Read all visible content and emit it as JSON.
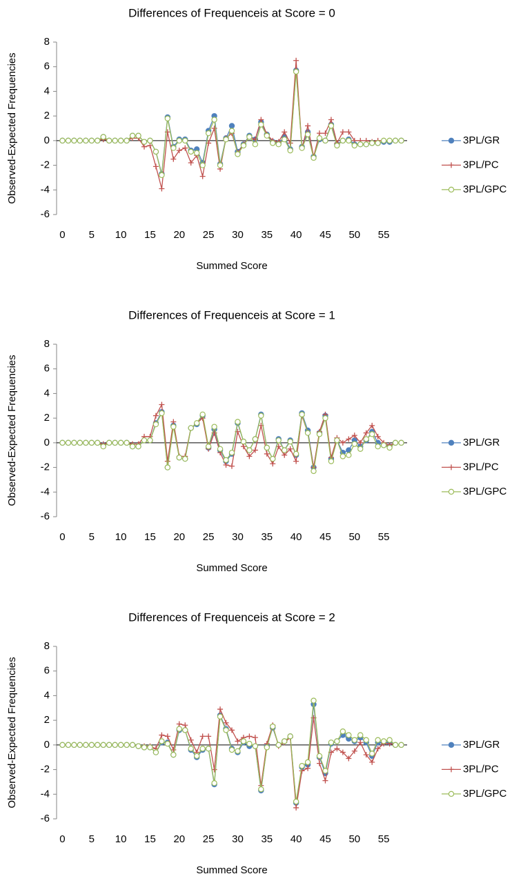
{
  "chart_data": [
    {
      "type": "line",
      "title": "Differences of Frequenceis at Score = 0",
      "x_label": "Summed Score",
      "y_label": "Observed-Expected Frequencies",
      "x": [
        0,
        1,
        2,
        3,
        4,
        5,
        6,
        7,
        8,
        9,
        10,
        11,
        12,
        13,
        14,
        15,
        16,
        17,
        18,
        19,
        20,
        21,
        22,
        23,
        24,
        25,
        26,
        27,
        28,
        29,
        30,
        31,
        32,
        33,
        34,
        35,
        36,
        37,
        38,
        39,
        40,
        41,
        42,
        43,
        44,
        45,
        46,
        47,
        48,
        49,
        50,
        51,
        52,
        53,
        54,
        55,
        56,
        57,
        58
      ],
      "series": [
        {
          "name": "3PL/GR",
          "color": "#4f81bd",
          "marker": "circle",
          "values": [
            0,
            0,
            0,
            0,
            0,
            0,
            0,
            0.3,
            0,
            0,
            0,
            0,
            0.4,
            0.4,
            -0.1,
            0,
            -0.9,
            -2.7,
            1.9,
            -0.5,
            0.1,
            0.1,
            -0.8,
            -0.7,
            -1.8,
            0.8,
            2,
            -1.9,
            0.2,
            1.2,
            -0.9,
            -0.3,
            0.4,
            0.1,
            1.5,
            0.5,
            -0.1,
            -0.2,
            0.3,
            -0.7,
            5.7,
            -0.5,
            0.7,
            -1.3,
            0.1,
            0,
            1.3,
            -0.3,
            0,
            0.1,
            -0.3,
            -0.3,
            -0.3,
            -0.2,
            -0.2,
            -0.1,
            -0.1,
            0,
            0
          ]
        },
        {
          "name": "3PL/PC",
          "color": "#c0504d",
          "marker": "plus",
          "values": [
            0,
            0,
            0,
            0,
            0,
            0,
            0,
            0.1,
            0,
            0,
            0,
            0,
            0.2,
            0.2,
            -0.5,
            -0.4,
            -2.1,
            -3.9,
            0.7,
            -1.5,
            -0.8,
            -0.6,
            -1.8,
            -1.2,
            -2.9,
            -0.2,
            1,
            -2.3,
            0.2,
            0.6,
            -1,
            -0.3,
            0.3,
            0.1,
            1.7,
            0.5,
            0,
            -0.1,
            0.7,
            -0.2,
            6.5,
            -0.6,
            1.2,
            -1.3,
            0.6,
            0.6,
            1.7,
            -0.2,
            0.7,
            0.7,
            0,
            0,
            0,
            -0.1,
            0,
            0,
            0,
            0,
            0
          ]
        },
        {
          "name": "3PL/GPC",
          "color": "#9bbb59",
          "marker": "open-circle",
          "values": [
            0,
            0,
            0,
            0,
            0,
            0,
            0,
            0.3,
            0,
            0,
            0,
            0,
            0.4,
            0.4,
            -0.1,
            0,
            -0.9,
            -2.8,
            1.8,
            -0.6,
            0,
            0,
            -0.9,
            -1,
            -2,
            0.6,
            1.7,
            -2,
            0.1,
            0.8,
            -1.1,
            -0.4,
            0.3,
            -0.3,
            1.3,
            0.4,
            -0.2,
            -0.3,
            0.1,
            -0.8,
            5.6,
            -0.6,
            0.5,
            -1.4,
            0.2,
            0,
            1.2,
            -0.4,
            0,
            0,
            -0.4,
            -0.3,
            -0.3,
            -0.2,
            -0.2,
            0,
            0,
            0,
            0
          ]
        }
      ],
      "xlim": [
        -1,
        59
      ],
      "ylim": [
        -6,
        8
      ],
      "xticks": [
        0,
        5,
        10,
        15,
        20,
        25,
        30,
        35,
        40,
        45,
        50,
        55
      ],
      "yticks": [
        -6,
        -4,
        -2,
        0,
        2,
        4,
        6,
        8
      ],
      "legend": "right"
    },
    {
      "type": "line",
      "title": "Differences of Frequenceis at Score = 1",
      "x_label": "Summed Score",
      "y_label": "Observed-Expected Frequencies",
      "x": [
        0,
        1,
        2,
        3,
        4,
        5,
        6,
        7,
        8,
        9,
        10,
        11,
        12,
        13,
        14,
        15,
        16,
        17,
        18,
        19,
        20,
        21,
        22,
        23,
        24,
        25,
        26,
        27,
        28,
        29,
        30,
        31,
        32,
        33,
        34,
        35,
        36,
        37,
        38,
        39,
        40,
        41,
        42,
        43,
        44,
        45,
        46,
        47,
        48,
        49,
        50,
        51,
        52,
        53,
        54,
        55,
        56,
        57,
        58
      ],
      "series": [
        {
          "name": "3PL/GR",
          "color": "#4f81bd",
          "marker": "circle",
          "values": [
            0,
            0,
            0,
            0,
            0,
            0,
            0,
            -0.2,
            0,
            0,
            0,
            0,
            -0.3,
            -0.3,
            0.2,
            0.2,
            1.6,
            2.5,
            -2,
            1.4,
            -1.2,
            -1.3,
            1.2,
            1.5,
            2.2,
            -0.4,
            1.1,
            -0.6,
            -1.5,
            -0.9,
            1.6,
            0.1,
            -0.6,
            0.3,
            2.3,
            -0.4,
            -1.3,
            0.3,
            -0.6,
            0.2,
            -1,
            2.4,
            1,
            -2,
            0.8,
            2.2,
            -1.3,
            0.2,
            -0.8,
            -0.6,
            0.2,
            -0.3,
            0.2,
            0.9,
            0,
            -0.2,
            -0.3,
            0,
            0
          ]
        },
        {
          "name": "3PL/PC",
          "color": "#c0504d",
          "marker": "plus",
          "values": [
            0,
            0,
            0,
            0,
            0,
            0,
            0,
            -0.1,
            0,
            0,
            0,
            0,
            -0.1,
            -0.1,
            0.5,
            0.5,
            2.2,
            3.1,
            -1.5,
            1.7,
            -1.1,
            -1.1,
            1.2,
            1.6,
            2,
            -0.5,
            0.8,
            -0.8,
            -1.8,
            -1.9,
            0.9,
            -0.3,
            -1.1,
            -0.6,
            1.4,
            -0.9,
            -1.7,
            -0.3,
            -1,
            -0.5,
            -1.5,
            2.2,
            0.8,
            -2,
            0.9,
            2.3,
            -1.2,
            0.4,
            0,
            0.3,
            0.6,
            0,
            0.8,
            1.4,
            0.5,
            0,
            -0.2,
            0,
            0
          ]
        },
        {
          "name": "3PL/GPC",
          "color": "#9bbb59",
          "marker": "open-circle",
          "values": [
            0,
            0,
            0,
            0,
            0,
            0,
            0,
            -0.3,
            0,
            0,
            0,
            0,
            -0.3,
            -0.3,
            0.2,
            0.2,
            1.5,
            2.4,
            -2,
            1.3,
            -1.2,
            -1.3,
            1.2,
            1.6,
            2.3,
            -0.3,
            1.3,
            -0.5,
            -1.4,
            -0.8,
            1.7,
            0.1,
            -0.6,
            0.3,
            2.2,
            -0.4,
            -1.3,
            0.2,
            -0.6,
            0.1,
            -0.9,
            2.3,
            0.8,
            -2.3,
            0.7,
            2,
            -1.5,
            0.2,
            -1.1,
            -1,
            -0.1,
            -0.5,
            0.3,
            0.7,
            -0.3,
            -0.2,
            -0.4,
            0,
            0
          ]
        }
      ],
      "xlim": [
        -1,
        59
      ],
      "ylim": [
        -6,
        8
      ],
      "xticks": [
        0,
        5,
        10,
        15,
        20,
        25,
        30,
        35,
        40,
        45,
        50,
        55
      ],
      "yticks": [
        -6,
        -4,
        -2,
        0,
        2,
        4,
        6,
        8
      ],
      "legend": "right"
    },
    {
      "type": "line",
      "title": "Differences of Frequenceis at Score = 2",
      "x_label": "Summed Score",
      "y_label": "Observed-Expected Frequencies",
      "x": [
        0,
        1,
        2,
        3,
        4,
        5,
        6,
        7,
        8,
        9,
        10,
        11,
        12,
        13,
        14,
        15,
        16,
        17,
        18,
        19,
        20,
        21,
        22,
        23,
        24,
        25,
        26,
        27,
        28,
        29,
        30,
        31,
        32,
        33,
        34,
        35,
        36,
        37,
        38,
        39,
        40,
        41,
        42,
        43,
        44,
        45,
        46,
        47,
        48,
        49,
        50,
        51,
        52,
        53,
        54,
        55,
        56,
        57,
        58
      ],
      "series": [
        {
          "name": "3PL/GR",
          "color": "#4f81bd",
          "marker": "circle",
          "values": [
            0,
            0,
            0,
            0,
            0,
            0,
            0,
            0,
            0,
            0,
            0,
            0,
            0,
            -0.1,
            -0.2,
            -0.2,
            -0.6,
            0.2,
            0.2,
            -0.8,
            1.2,
            1.2,
            -0.4,
            -1,
            -0.4,
            -0.3,
            -3.2,
            2.4,
            1.3,
            -0.3,
            -0.6,
            0.2,
            -0.1,
            -0.1,
            -3.7,
            -0.1,
            1.4,
            0,
            0.3,
            0.7,
            -4.7,
            -1.8,
            -1.6,
            3.3,
            -1,
            -2.3,
            0.1,
            0.3,
            0.8,
            0.5,
            0.3,
            0.6,
            0.2,
            -0.9,
            0.2,
            0.2,
            0.2,
            0,
            0
          ]
        },
        {
          "name": "3PL/PC",
          "color": "#c0504d",
          "marker": "plus",
          "values": [
            0,
            0,
            0,
            0,
            0,
            0,
            0,
            0,
            0,
            0,
            0,
            0,
            0,
            -0.1,
            -0.1,
            -0.1,
            -0.3,
            0.8,
            0.7,
            -0.4,
            1.7,
            1.6,
            0.4,
            -0.6,
            0.7,
            0.7,
            -2,
            2.9,
            1.8,
            1.2,
            0.3,
            0.6,
            0.7,
            0.6,
            -3.3,
            0.1,
            1.6,
            -0.1,
            0.2,
            0.6,
            -5.1,
            -2.1,
            -1.9,
            2.2,
            -1.5,
            -2.9,
            -0.6,
            -0.3,
            -0.6,
            -1.1,
            -0.5,
            0.2,
            -0.8,
            -1.4,
            -0.3,
            0.1,
            0.1,
            0,
            0
          ]
        },
        {
          "name": "3PL/GPC",
          "color": "#9bbb59",
          "marker": "open-circle",
          "values": [
            0,
            0,
            0,
            0,
            0,
            0,
            0,
            0,
            0,
            0,
            0,
            0,
            0,
            -0.1,
            -0.2,
            -0.2,
            -0.6,
            0.3,
            0.1,
            -0.8,
            1.3,
            1.2,
            -0.3,
            -0.9,
            -0.3,
            -0.3,
            -3.1,
            2.3,
            1.2,
            -0.4,
            -0.5,
            0.3,
            0.1,
            -0.1,
            -3.6,
            -0.2,
            1.5,
            0,
            0.3,
            0.7,
            -4.6,
            -1.7,
            -1.4,
            3.6,
            -0.9,
            -2.1,
            0.2,
            0.3,
            1.1,
            0.8,
            0.4,
            0.8,
            0.4,
            -0.7,
            0.4,
            0.3,
            0.4,
            0,
            0
          ]
        }
      ],
      "xlim": [
        -1,
        59
      ],
      "ylim": [
        -6,
        8
      ],
      "xticks": [
        0,
        5,
        10,
        15,
        20,
        25,
        30,
        35,
        40,
        45,
        50,
        55
      ],
      "yticks": [
        -6,
        -4,
        -2,
        0,
        2,
        4,
        6,
        8
      ],
      "legend": "right"
    }
  ]
}
